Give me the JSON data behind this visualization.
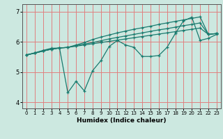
{
  "title": "",
  "xlabel": "Humidex (Indice chaleur)",
  "background_color": "#cce8e0",
  "grid_color": "#e08080",
  "line_color": "#1a7a6e",
  "xlim": [
    -0.5,
    23.5
  ],
  "ylim": [
    3.8,
    7.25
  ],
  "yticks": [
    4,
    5,
    6,
    7
  ],
  "xtick_labels": [
    "0",
    "1",
    "2",
    "3",
    "4",
    "5",
    "6",
    "7",
    "8",
    "9",
    "10",
    "11",
    "12",
    "13",
    "14",
    "15",
    "16",
    "17",
    "18",
    "19",
    "20",
    "21",
    "22",
    "23"
  ],
  "line1": [
    5.57,
    5.64,
    5.72,
    5.79,
    5.8,
    4.32,
    4.7,
    4.38,
    5.05,
    5.38,
    5.85,
    6.05,
    5.9,
    5.82,
    5.52,
    5.52,
    5.55,
    5.82,
    6.28,
    6.7,
    6.82,
    6.05,
    6.12,
    6.25
  ],
  "line2": [
    5.57,
    5.63,
    5.7,
    5.76,
    5.8,
    5.82,
    5.9,
    5.98,
    6.08,
    6.16,
    6.23,
    6.3,
    6.36,
    6.42,
    6.47,
    6.52,
    6.58,
    6.63,
    6.68,
    6.73,
    6.78,
    6.83,
    6.25,
    6.28
  ],
  "line3": [
    5.57,
    5.63,
    5.7,
    5.76,
    5.8,
    5.82,
    5.88,
    5.93,
    5.98,
    6.04,
    6.1,
    6.15,
    6.2,
    6.25,
    6.3,
    6.35,
    6.4,
    6.44,
    6.49,
    6.54,
    6.58,
    6.63,
    6.25,
    6.28
  ],
  "line4": [
    5.57,
    5.63,
    5.7,
    5.76,
    5.8,
    5.82,
    5.86,
    5.9,
    5.94,
    5.98,
    6.02,
    6.06,
    6.1,
    6.14,
    6.18,
    6.22,
    6.26,
    6.3,
    6.34,
    6.38,
    6.42,
    6.46,
    6.25,
    6.28
  ]
}
